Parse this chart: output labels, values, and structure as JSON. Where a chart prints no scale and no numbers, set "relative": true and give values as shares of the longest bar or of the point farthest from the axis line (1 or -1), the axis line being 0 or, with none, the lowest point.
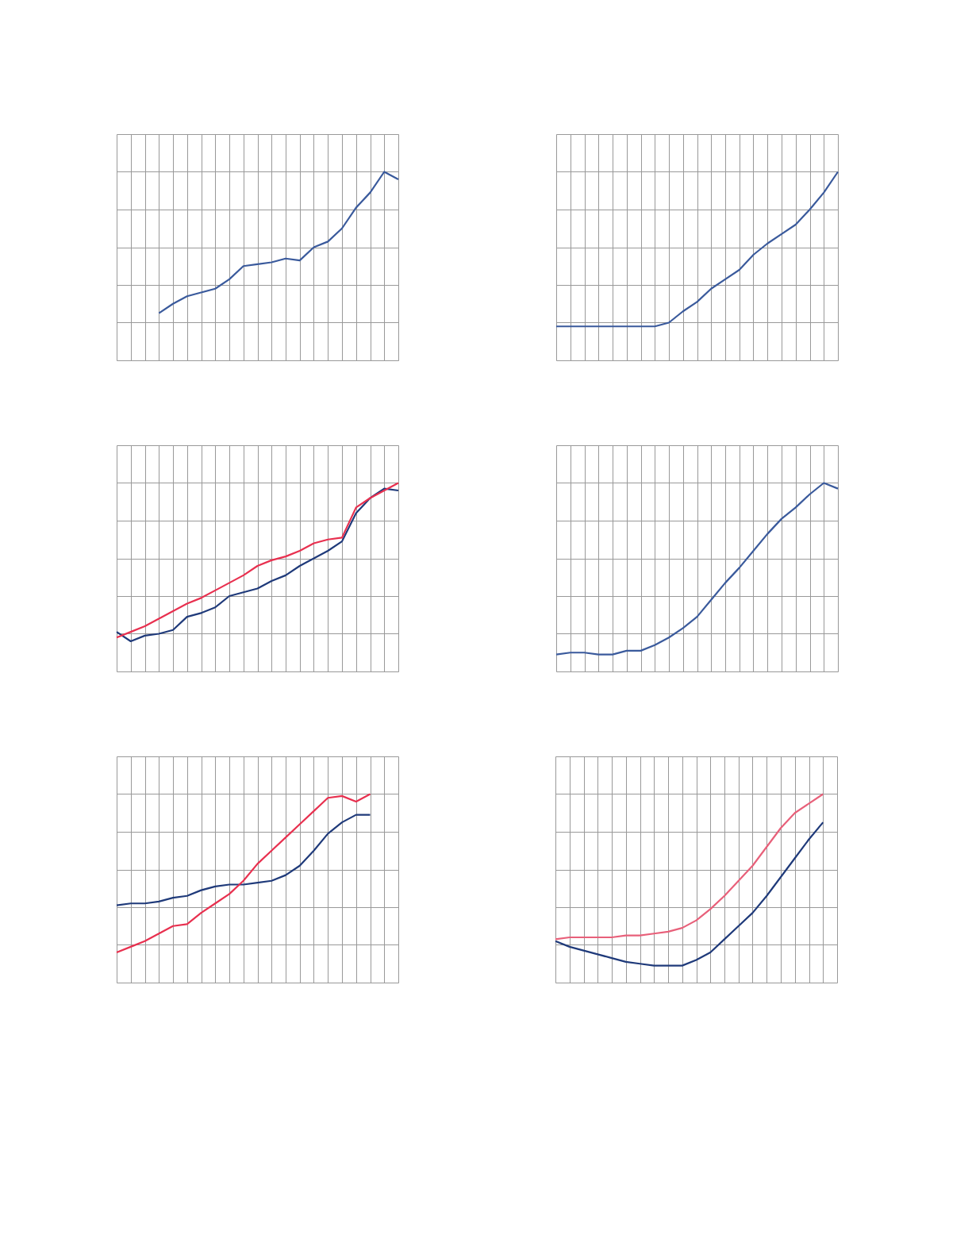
{
  "chart_data": [
    {
      "type": "line",
      "relative": true,
      "grid": true,
      "categories": [
        null,
        null,
        null,
        null,
        null,
        null,
        null,
        null,
        null,
        null,
        null,
        null,
        null,
        null,
        null,
        null,
        null,
        null,
        null,
        null,
        null
      ],
      "series": [
        {
          "color": "#3a5a9c",
          "values": [
            null,
            null,
            null,
            0.25,
            0.3,
            0.34,
            0.36,
            0.38,
            0.43,
            0.5,
            0.51,
            0.52,
            0.54,
            0.53,
            0.6,
            0.63,
            0.7,
            0.81,
            0.89,
            1,
            0.96
          ]
        }
      ]
    },
    {
      "type": "line",
      "relative": true,
      "grid": true,
      "categories": [
        null,
        null,
        null,
        null,
        null,
        null,
        null,
        null,
        null,
        null,
        null,
        null,
        null,
        null,
        null,
        null,
        null,
        null,
        null,
        null,
        null
      ],
      "series": [
        {
          "color": "#3a5a9c",
          "values": [
            0.18,
            0.18,
            0.18,
            0.18,
            0.18,
            0.18,
            0.18,
            0.18,
            0.2,
            0.26,
            0.31,
            0.38,
            0.43,
            0.48,
            0.56,
            0.62,
            0.67,
            0.72,
            0.8,
            0.89,
            1
          ]
        }
      ]
    },
    {
      "type": "line",
      "relative": true,
      "grid": true,
      "categories": [
        null,
        null,
        null,
        null,
        null,
        null,
        null,
        null,
        null,
        null,
        null,
        null,
        null,
        null,
        null,
        null,
        null,
        null,
        null,
        null,
        null
      ],
      "series": [
        {
          "color": "#1f3a7a",
          "values": [
            0.21,
            0.16,
            0.19,
            0.2,
            0.22,
            0.29,
            0.31,
            0.34,
            0.4,
            0.42,
            0.44,
            0.48,
            0.51,
            0.56,
            0.6,
            0.64,
            0.69,
            0.84,
            0.92,
            0.97,
            0.96
          ]
        },
        {
          "color": "#e8304f",
          "values": [
            0.18,
            0.21,
            0.24,
            0.28,
            0.32,
            0.36,
            0.39,
            0.43,
            0.47,
            0.51,
            0.56,
            0.59,
            0.61,
            0.64,
            0.68,
            0.7,
            0.71,
            0.87,
            0.92,
            0.96,
            1
          ]
        }
      ]
    },
    {
      "type": "line",
      "relative": true,
      "grid": true,
      "categories": [
        null,
        null,
        null,
        null,
        null,
        null,
        null,
        null,
        null,
        null,
        null,
        null,
        null,
        null,
        null,
        null,
        null,
        null,
        null,
        null,
        null
      ],
      "series": [
        {
          "color": "#3a5a9c",
          "values": [
            0.09,
            0.1,
            0.1,
            0.09,
            0.09,
            0.11,
            0.11,
            0.14,
            0.18,
            0.23,
            0.29,
            0.38,
            0.47,
            0.55,
            0.64,
            0.73,
            0.81,
            0.87,
            0.94,
            1,
            0.97
          ]
        }
      ]
    },
    {
      "type": "line",
      "relative": true,
      "grid": true,
      "categories": [
        null,
        null,
        null,
        null,
        null,
        null,
        null,
        null,
        null,
        null,
        null,
        null,
        null,
        null,
        null,
        null,
        null,
        null,
        null,
        null,
        null
      ],
      "series": [
        {
          "color": "#1f3a7a",
          "values": [
            0.41,
            0.42,
            0.42,
            0.43,
            0.45,
            0.46,
            0.49,
            0.51,
            0.52,
            0.52,
            0.53,
            0.54,
            0.57,
            0.62,
            0.7,
            0.79,
            0.85,
            0.89,
            0.89,
            null,
            null
          ]
        },
        {
          "color": "#e8304f",
          "values": [
            0.16,
            0.19,
            0.22,
            0.26,
            0.3,
            0.31,
            0.37,
            0.42,
            0.47,
            0.54,
            0.63,
            0.7,
            0.77,
            0.84,
            0.91,
            0.98,
            0.99,
            0.96,
            1,
            null,
            null
          ]
        }
      ]
    },
    {
      "type": "line",
      "relative": true,
      "grid": true,
      "categories": [
        null,
        null,
        null,
        null,
        null,
        null,
        null,
        null,
        null,
        null,
        null,
        null,
        null,
        null,
        null,
        null,
        null,
        null,
        null,
        null,
        null
      ],
      "series": [
        {
          "color": "#e8607a",
          "values": [
            0.23,
            0.24,
            0.24,
            0.24,
            0.24,
            0.25,
            0.25,
            0.26,
            0.27,
            0.29,
            0.33,
            0.39,
            0.46,
            0.54,
            0.62,
            0.72,
            0.82,
            0.9,
            0.95,
            1,
            null
          ]
        },
        {
          "color": "#1f3a7a",
          "values": [
            0.22,
            0.19,
            0.17,
            0.15,
            0.13,
            0.11,
            0.1,
            0.09,
            0.09,
            0.09,
            0.12,
            0.16,
            0.23,
            0.3,
            0.37,
            0.46,
            0.56,
            0.66,
            0.76,
            0.85,
            null
          ]
        }
      ]
    }
  ]
}
